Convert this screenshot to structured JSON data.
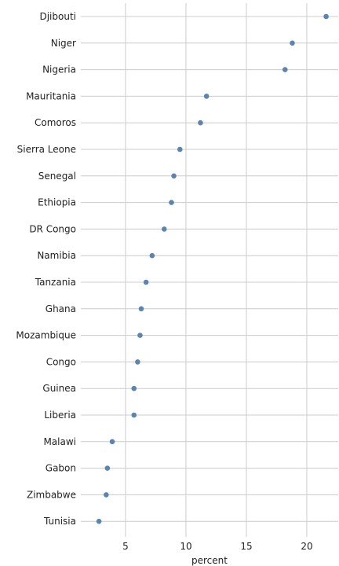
{
  "chart_data": {
    "type": "scatter",
    "xlabel": "percent",
    "xlim": [
      1.3,
      22.6
    ],
    "xticks": [
      5,
      10,
      15,
      20
    ],
    "grid": true,
    "point_color": "#5b84b1",
    "grid_color": "#cccccc",
    "categories": [
      "Djibouti",
      "Niger",
      "Nigeria",
      "Mauritania",
      "Comoros",
      "Sierra Leone",
      "Senegal",
      "Ethiopia",
      "DR Congo",
      "Namibia",
      "Tanzania",
      "Ghana",
      "Mozambique",
      "Congo",
      "Guinea",
      "Liberia",
      "Malawi",
      "Gabon",
      "Zimbabwe",
      "Tunisia"
    ],
    "values": [
      21.6,
      18.8,
      18.2,
      11.7,
      11.2,
      9.5,
      9.0,
      8.8,
      8.2,
      7.2,
      6.7,
      6.3,
      6.2,
      6.0,
      5.7,
      5.7,
      3.9,
      3.5,
      3.4,
      2.8
    ]
  }
}
